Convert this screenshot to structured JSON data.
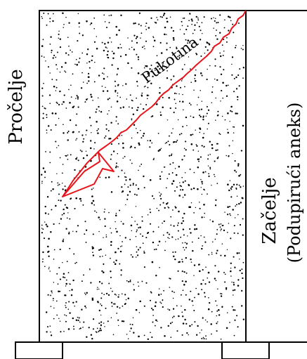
{
  "labels": {
    "front": "Pročelje",
    "crack": "Pukotina",
    "back": "Začelje",
    "annex": "(Podupirući aneks)"
  },
  "colors": {
    "crack": "#e8141b",
    "line": "#000000",
    "background": "#ffffff"
  }
}
